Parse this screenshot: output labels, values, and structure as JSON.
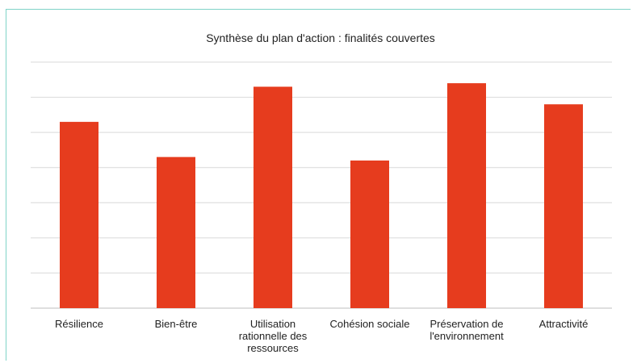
{
  "chart_data": {
    "type": "bar",
    "title": "Synthèse du plan d'action : finalités couvertes",
    "categories": [
      [
        "Résilience"
      ],
      [
        "Bien-être"
      ],
      [
        "Utilisation",
        "rationnelle des",
        "ressources"
      ],
      [
        "Cohésion sociale"
      ],
      [
        "Préservation de",
        "l'environnement"
      ],
      [
        "Attractivité"
      ]
    ],
    "values": [
      5.3,
      4.3,
      6.3,
      4.2,
      6.4,
      5.8
    ],
    "ylim": [
      0,
      7
    ],
    "grid": true,
    "colors": {
      "bar": "#e63c1e",
      "grid": "#d9d9d9",
      "axis": "#bfbfbf"
    }
  }
}
